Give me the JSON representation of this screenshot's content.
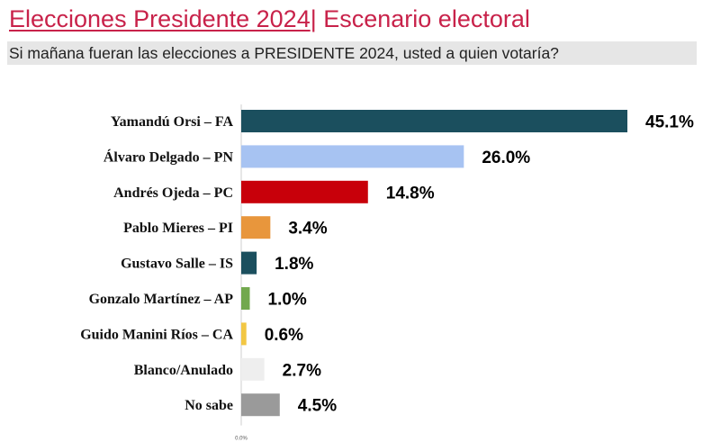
{
  "header": {
    "title_main": "Elecciones Presidente 2024",
    "title_sep": "|",
    "title_rest": " Escenario electoral",
    "subtitle": "Si mañana fueran las elecciones a PRESIDENTE 2024, usted a quien votaría?"
  },
  "chart_data": {
    "type": "bar",
    "orientation": "horizontal",
    "categories": [
      "Yamandú Orsi – FA",
      "Álvaro Delgado – PN",
      "Andrés Ojeda – PC",
      "Pablo Mieres – PI",
      "Gustavo Salle – IS",
      "Gonzalo Martínez – AP",
      "Guido Manini Ríos – CA",
      "Blanco/Anulado",
      "No sabe"
    ],
    "values": [
      45.1,
      26.0,
      14.8,
      3.4,
      1.8,
      1.0,
      0.6,
      2.7,
      4.5
    ],
    "value_labels": [
      "45.1%",
      "26.0%",
      "14.8%",
      "3.4%",
      "1.8%",
      "1.0%",
      "0.6%",
      "2.7%",
      "4.5%"
    ],
    "colors": [
      "#1b4f5e",
      "#a7c3f2",
      "#c8000a",
      "#e8963c",
      "#1b4f5e",
      "#72a84e",
      "#f2c744",
      "#eeeeee",
      "#9a9a9a"
    ],
    "axis_tick_label": "0.0%",
    "xlim": [
      0,
      45.1
    ],
    "grid": false,
    "legend": "none"
  }
}
